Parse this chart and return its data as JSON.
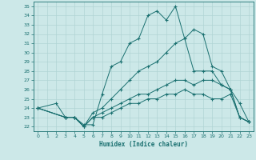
{
  "title": "",
  "xlabel": "Humidex (Indice chaleur)",
  "ylabel": "",
  "xlim": [
    -0.5,
    23.5
  ],
  "ylim": [
    21.5,
    35.5
  ],
  "xticks": [
    0,
    1,
    2,
    3,
    4,
    5,
    6,
    7,
    8,
    9,
    10,
    11,
    12,
    13,
    14,
    15,
    16,
    17,
    18,
    19,
    20,
    21,
    22,
    23
  ],
  "yticks": [
    22,
    23,
    24,
    25,
    26,
    27,
    28,
    29,
    30,
    31,
    32,
    33,
    34,
    35
  ],
  "bg_color": "#cce8e8",
  "line_color": "#1a7070",
  "grid_color": "#b0d4d4",
  "lines": [
    {
      "x": [
        0,
        2,
        3,
        4,
        5,
        6,
        7,
        8,
        9,
        10,
        11,
        12,
        13,
        14,
        15,
        16,
        17,
        18,
        19,
        20,
        21,
        22,
        23
      ],
      "y": [
        24,
        24.5,
        23,
        23,
        22.2,
        22.2,
        25.5,
        28.5,
        29,
        31,
        31.5,
        34,
        34.5,
        33.5,
        35,
        31.5,
        32.5,
        32,
        28.5,
        28,
        26,
        24.5,
        22.5
      ]
    },
    {
      "x": [
        0,
        3,
        4,
        5,
        6,
        7,
        8,
        9,
        10,
        11,
        12,
        13,
        14,
        15,
        16,
        17,
        18,
        19,
        20,
        21,
        22,
        23
      ],
      "y": [
        24,
        23,
        23,
        22,
        23.5,
        24,
        25,
        26,
        27,
        28,
        28.5,
        29,
        30,
        31,
        31.5,
        28,
        28,
        28,
        26.5,
        26,
        23,
        22.5
      ]
    },
    {
      "x": [
        0,
        3,
        4,
        5,
        6,
        7,
        8,
        9,
        10,
        11,
        12,
        13,
        14,
        15,
        16,
        17,
        18,
        19,
        20,
        21,
        22,
        23
      ],
      "y": [
        24,
        23,
        23,
        22,
        23,
        23.5,
        24,
        24.5,
        25,
        25.5,
        25.5,
        26,
        26.5,
        27,
        27,
        26.5,
        27,
        27,
        26.5,
        26,
        23,
        22.5
      ]
    },
    {
      "x": [
        0,
        3,
        4,
        5,
        6,
        7,
        8,
        9,
        10,
        11,
        12,
        13,
        14,
        15,
        16,
        17,
        18,
        19,
        20,
        21,
        22,
        23
      ],
      "y": [
        24,
        23,
        23,
        22,
        23,
        23,
        23.5,
        24,
        24.5,
        24.5,
        25,
        25,
        25.5,
        25.5,
        26,
        25.5,
        25.5,
        25,
        25,
        25.5,
        23,
        22.5
      ]
    }
  ]
}
